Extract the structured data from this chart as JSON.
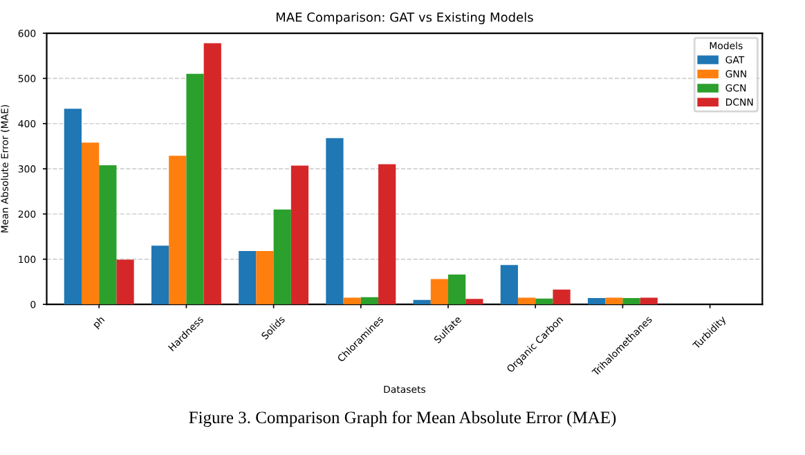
{
  "chart_data": {
    "type": "bar",
    "title": "MAE Comparison: GAT vs Existing Models",
    "xlabel": "Datasets",
    "ylabel": "Mean Absolute Error (MAE)",
    "legend_title": "Models",
    "categories": [
      "ph",
      "Hardness",
      "Solids",
      "Chloramines",
      "Sulfate",
      "Organic Carbon",
      "Trihalomethanes",
      "Turbidity"
    ],
    "series": [
      {
        "name": "GAT",
        "color": "#1f77b4",
        "values": [
          433,
          130,
          118,
          368,
          10,
          87,
          14,
          0
        ]
      },
      {
        "name": "GNN",
        "color": "#ff7f0e",
        "values": [
          358,
          329,
          118,
          15,
          56,
          15,
          15,
          0
        ]
      },
      {
        "name": "GCN",
        "color": "#2ca02c",
        "values": [
          308,
          510,
          210,
          16,
          66,
          13,
          14,
          0
        ]
      },
      {
        "name": "DCNN",
        "color": "#d62728",
        "values": [
          99,
          578,
          307,
          310,
          12,
          33,
          15,
          0
        ]
      }
    ],
    "ylim": [
      0,
      600
    ],
    "yticks": [
      0,
      100,
      200,
      300,
      400,
      500,
      600
    ],
    "grid": "y",
    "legend": "top right",
    "annotations": [
      "Figure 3. Comparison Graph for Mean Absolute Error (MAE)"
    ]
  }
}
